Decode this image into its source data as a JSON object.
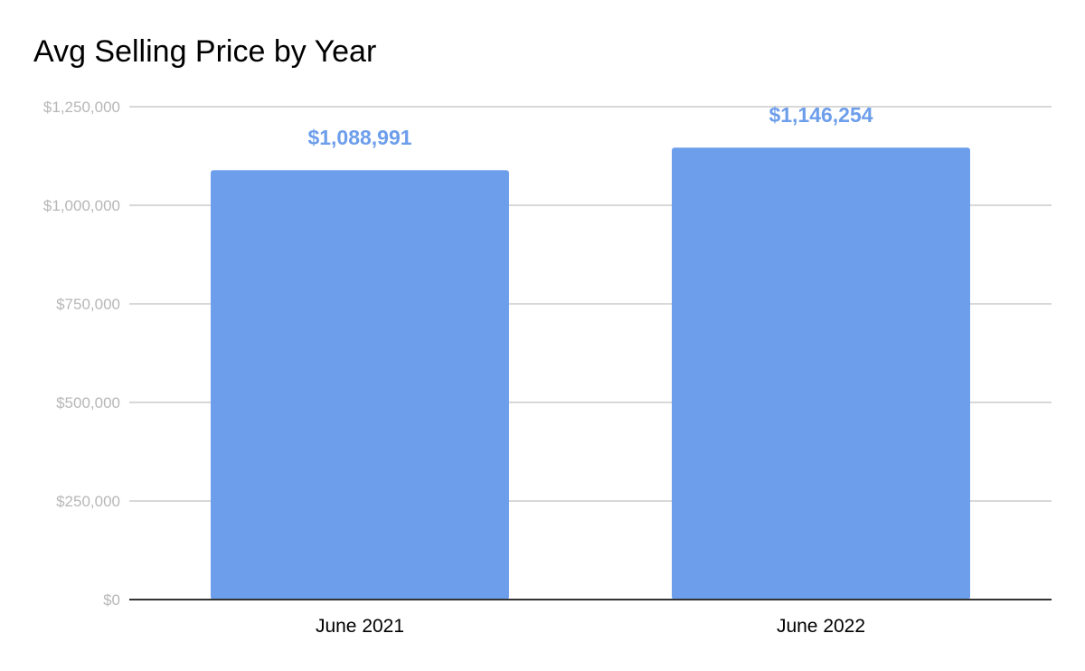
{
  "chart_data": {
    "type": "bar",
    "title": "Avg Selling Price by Year",
    "xlabel": "",
    "ylabel": "",
    "categories": [
      "June 2021",
      "June 2022"
    ],
    "values": [
      1088991,
      1146254
    ],
    "data_labels": [
      "$1,088,991",
      "$1,146,254"
    ],
    "ylim": [
      0,
      1250000
    ],
    "y_ticks": [
      0,
      250000,
      500000,
      750000,
      1000000,
      1250000
    ],
    "y_tick_labels": [
      "$0",
      "$250,000",
      "$500,000",
      "$750,000",
      "$1,000,000",
      "$1,250,000"
    ],
    "grid": true,
    "legend": "none",
    "colors": {
      "bar": "#6d9eeb",
      "data_label": "#6d9eeb",
      "grid": "#cccccc",
      "axis": "#333333",
      "y_tick_text": "#b7b7b7",
      "x_tick_text": "#000000",
      "title": "#000000"
    }
  }
}
